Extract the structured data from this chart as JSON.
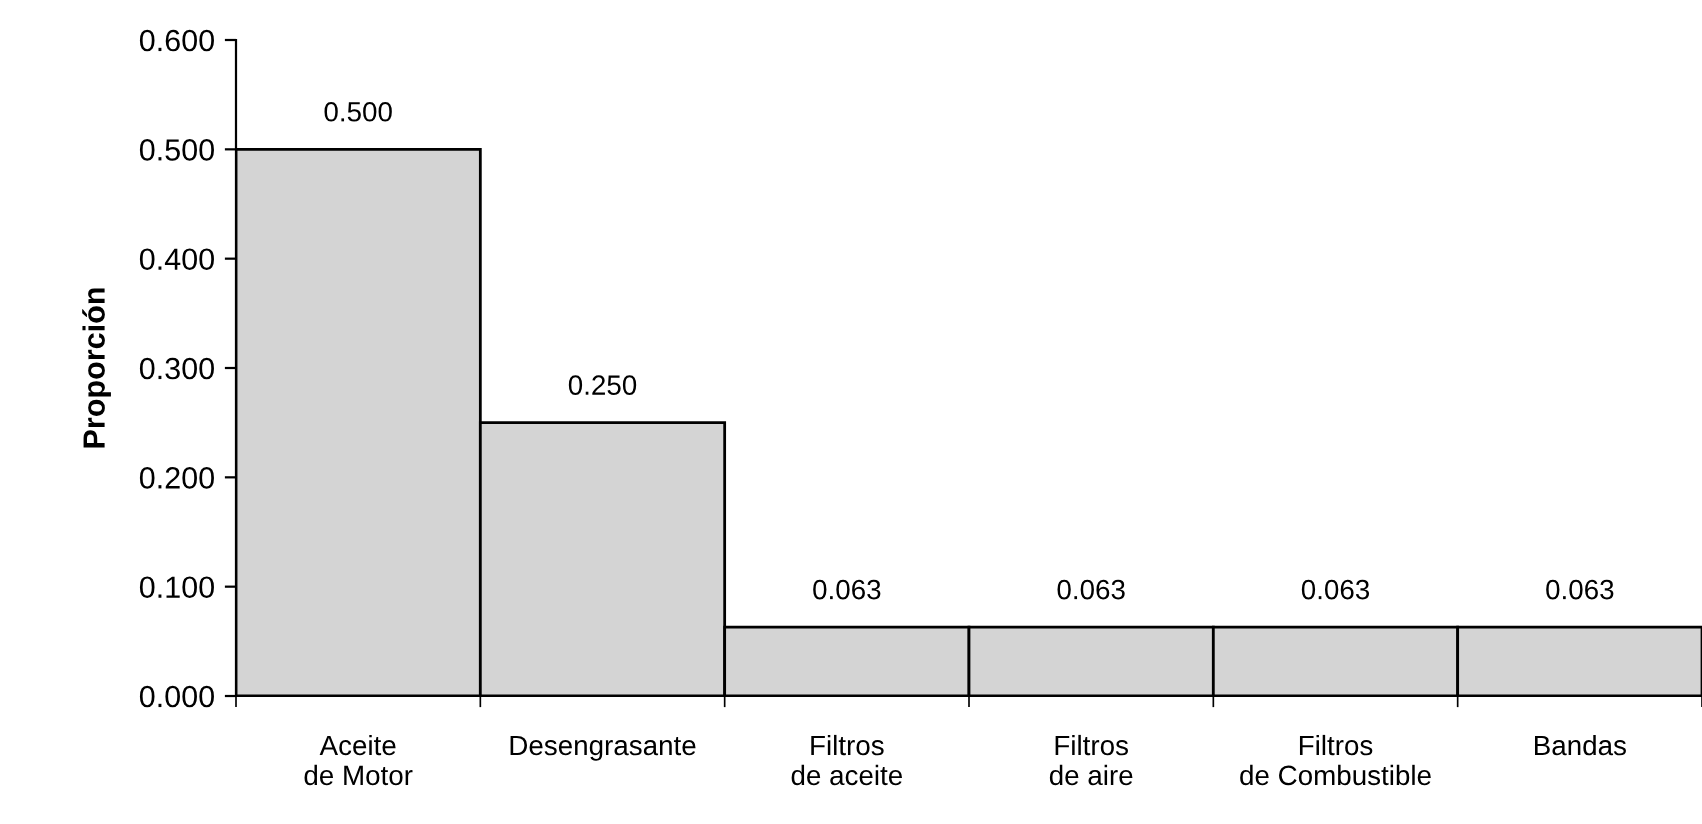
{
  "chart_data": {
    "type": "bar",
    "ylabel": "Proporción",
    "categories": [
      "Aceite\nde Motor",
      "Desengrasante",
      "Filtros\nde aceite",
      "Filtros\nde aire",
      "Filtros\nde Combustible",
      "Bandas"
    ],
    "values": [
      0.5,
      0.25,
      0.063,
      0.063,
      0.063,
      0.063
    ],
    "value_labels": [
      "0.500",
      "0.250",
      "0.063",
      "0.063",
      "0.063",
      "0.063"
    ],
    "color": "#d4d4d4",
    "ylim": [
      0,
      0.6
    ],
    "yticks": [
      {
        "value": 0,
        "label": "0.000"
      },
      {
        "value": 0.1,
        "label": "0.100"
      },
      {
        "value": 0.2,
        "label": "0.200"
      },
      {
        "value": 0.3,
        "label": "0.300"
      },
      {
        "value": 0.4,
        "label": "0.400"
      },
      {
        "value": 0.5,
        "label": "0.500"
      },
      {
        "value": 0.6,
        "label": "0.600"
      }
    ],
    "grid": false
  }
}
